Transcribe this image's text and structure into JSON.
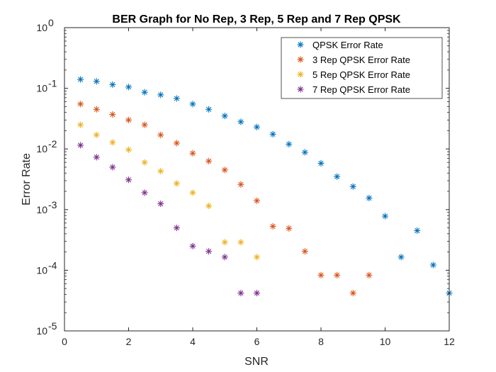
{
  "chart_data": {
    "type": "scatter",
    "title": "BER Graph for No Rep, 3 Rep, 5 Rep and 7 Rep QPSK",
    "xlabel": "SNR",
    "ylabel": "Error Rate",
    "xlim": [
      0,
      12
    ],
    "ylim": [
      1e-05,
      1
    ],
    "yscale": "log",
    "grid": false,
    "legend_position": "top-right",
    "xticks": [
      "0",
      "2",
      "4",
      "6",
      "8",
      "10",
      "12"
    ],
    "yticks": [
      {
        "value": 1,
        "base": "10",
        "exp": "0"
      },
      {
        "value": 0.1,
        "base": "10",
        "exp": "-1"
      },
      {
        "value": 0.01,
        "base": "10",
        "exp": "-2"
      },
      {
        "value": 0.001,
        "base": "10",
        "exp": "-3"
      },
      {
        "value": 0.0001,
        "base": "10",
        "exp": "-4"
      },
      {
        "value": 1e-05,
        "base": "10",
        "exp": "-5"
      }
    ],
    "series": [
      {
        "name": "QPSK Error Rate",
        "color": "#0072BD",
        "x": [
          0.5,
          1,
          1.5,
          2,
          2.5,
          3,
          3.5,
          4,
          4.5,
          5,
          5.5,
          6,
          6.5,
          7,
          7.5,
          8,
          8.5,
          9,
          9.5,
          10,
          10.5,
          11,
          11.5,
          12
        ],
        "y": [
          0.14,
          0.13,
          0.115,
          0.105,
          0.086,
          0.078,
          0.068,
          0.055,
          0.045,
          0.035,
          0.028,
          0.023,
          0.0175,
          0.012,
          0.0088,
          0.0058,
          0.0035,
          0.0024,
          0.00155,
          0.00078,
          0.000165,
          0.00045,
          0.000122,
          4.2e-05
        ]
      },
      {
        "name": "3 Rep QPSK Error Rate",
        "color": "#D95319",
        "x": [
          0.5,
          1,
          1.5,
          2,
          2.5,
          3,
          3.5,
          4,
          4.5,
          5,
          5.5,
          6,
          6.5,
          7,
          7.5,
          8,
          8.5,
          9,
          9.5
        ],
        "y": [
          0.055,
          0.045,
          0.037,
          0.03,
          0.025,
          0.017,
          0.0125,
          0.0085,
          0.0063,
          0.0045,
          0.0026,
          0.0014,
          0.00053,
          0.00049,
          0.000205,
          8.3e-05,
          8.3e-05,
          4.2e-05,
          8.3e-05
        ]
      },
      {
        "name": "5 Rep QPSK Error Rate",
        "color": "#EDB120",
        "x": [
          0.5,
          1,
          1.5,
          2,
          2.5,
          3,
          3.5,
          4,
          4.5,
          5,
          5.5,
          6
        ],
        "y": [
          0.025,
          0.017,
          0.0128,
          0.0097,
          0.006,
          0.0043,
          0.0027,
          0.0019,
          0.00115,
          0.00029,
          0.00029,
          0.000165
        ]
      },
      {
        "name": "7 Rep QPSK Error Rate",
        "color": "#7E2F8E",
        "x": [
          0.5,
          1,
          1.5,
          2,
          2.5,
          3,
          3.5,
          4,
          4.5,
          5,
          5.5,
          6
        ],
        "y": [
          0.0115,
          0.0073,
          0.005,
          0.0031,
          0.0019,
          0.00125,
          0.0005,
          0.00025,
          0.000205,
          0.000165,
          4.2e-05,
          4.2e-05
        ]
      }
    ]
  }
}
